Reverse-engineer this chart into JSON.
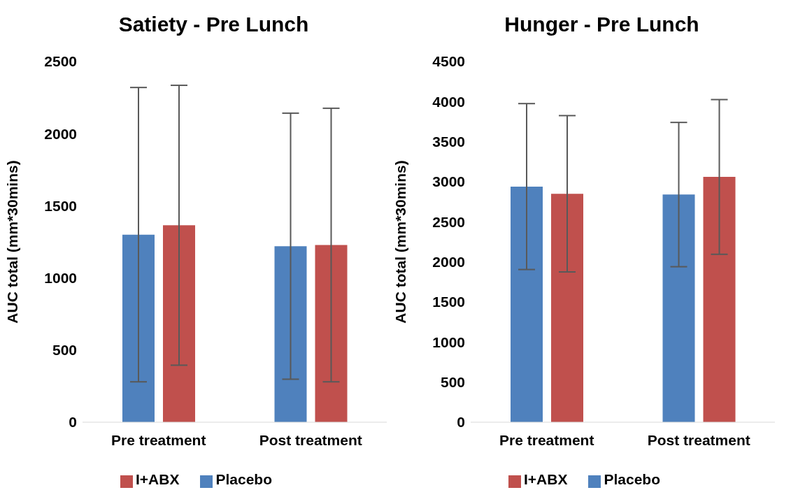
{
  "chart_data": [
    {
      "type": "bar",
      "title": "Satiety - Pre Lunch",
      "ylabel": "AUC total (mm*30mins)",
      "categories": [
        "Pre treatment",
        "Post treatment"
      ],
      "series": [
        {
          "name": "Placebo",
          "color": "#4f81bd",
          "values": [
            1300,
            1220
          ],
          "errors": [
            1020,
            922
          ]
        },
        {
          "name": "I+ABX",
          "color": "#c0504d",
          "values": [
            1365,
            1228
          ],
          "errors": [
            970,
            948
          ]
        }
      ],
      "ylim": [
        0,
        2500
      ],
      "yticks": [
        0,
        500,
        1000,
        1500,
        2000,
        2500
      ],
      "grid": false,
      "legend": "bottom"
    },
    {
      "type": "bar",
      "title": "Hunger - Pre Lunch",
      "ylabel": "AUC total (mm*30mins)",
      "categories": [
        "Pre treatment",
        "Post treatment"
      ],
      "series": [
        {
          "name": "Placebo",
          "color": "#4f81bd",
          "values": [
            2940,
            2840
          ],
          "errors": [
            1035,
            900
          ]
        },
        {
          "name": "I+ABX",
          "color": "#c0504d",
          "values": [
            2850,
            3060
          ],
          "errors": [
            975,
            965
          ]
        }
      ],
      "ylim": [
        0,
        4500
      ],
      "yticks": [
        0,
        500,
        1000,
        1500,
        2000,
        2500,
        3000,
        3500,
        4000,
        4500
      ],
      "grid": false,
      "legend": "bottom"
    }
  ]
}
